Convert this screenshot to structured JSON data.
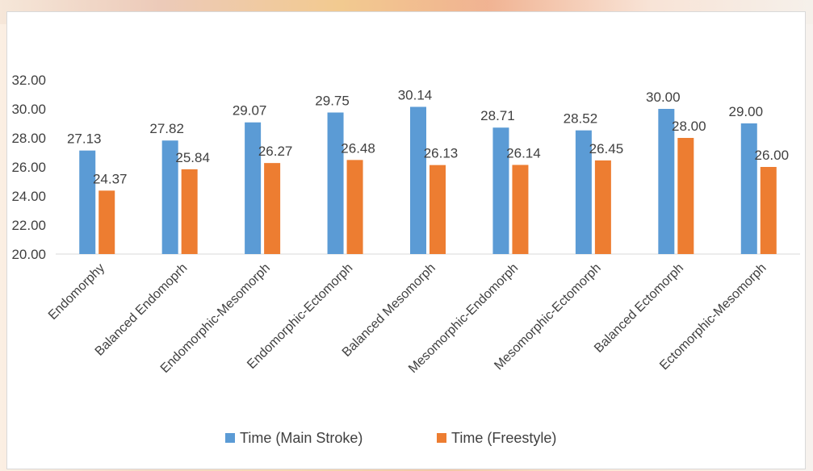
{
  "chart_data": {
    "type": "bar",
    "title": "",
    "xlabel": "",
    "ylabel": "",
    "ylim": [
      20,
      32
    ],
    "y_ticks": [
      "20.00",
      "22.00",
      "24.00",
      "26.00",
      "28.00",
      "30.00",
      "32.00"
    ],
    "y_tick_values": [
      20,
      22,
      24,
      26,
      28,
      30,
      32
    ],
    "grid": true,
    "legend_position": "bottom",
    "categories": [
      "Endomorphy",
      "Balanced Endomoprh",
      "Endomorphic-Mesomorph",
      "Endomorphic-Ectomorph",
      "Balanced Mesomorph",
      "Mesomorphic-Endomorph",
      "Mesomorphic-Ectomorph",
      "Balanced Ectomorph",
      "Ectomorphic-Mesomorph"
    ],
    "series": [
      {
        "name": "Time (Main Stroke)",
        "color": "#5b9bd5",
        "values": [
          27.13,
          27.82,
          29.07,
          29.75,
          30.14,
          28.71,
          28.52,
          30.0,
          29.0
        ],
        "labels": [
          "27.13",
          "27.82",
          "29.07",
          "29.75",
          "30.14",
          "28.71",
          "28.52",
          "30.00",
          "29.00"
        ]
      },
      {
        "name": "Time (Freestyle)",
        "color": "#ed7d31",
        "values": [
          24.37,
          25.84,
          26.27,
          26.48,
          26.13,
          26.14,
          26.45,
          28.0,
          26.0
        ],
        "labels": [
          "24.37",
          "25.84",
          "26.27",
          "26.48",
          "26.13",
          "26.14",
          "26.45",
          "28.00",
          "26.00"
        ]
      }
    ]
  }
}
